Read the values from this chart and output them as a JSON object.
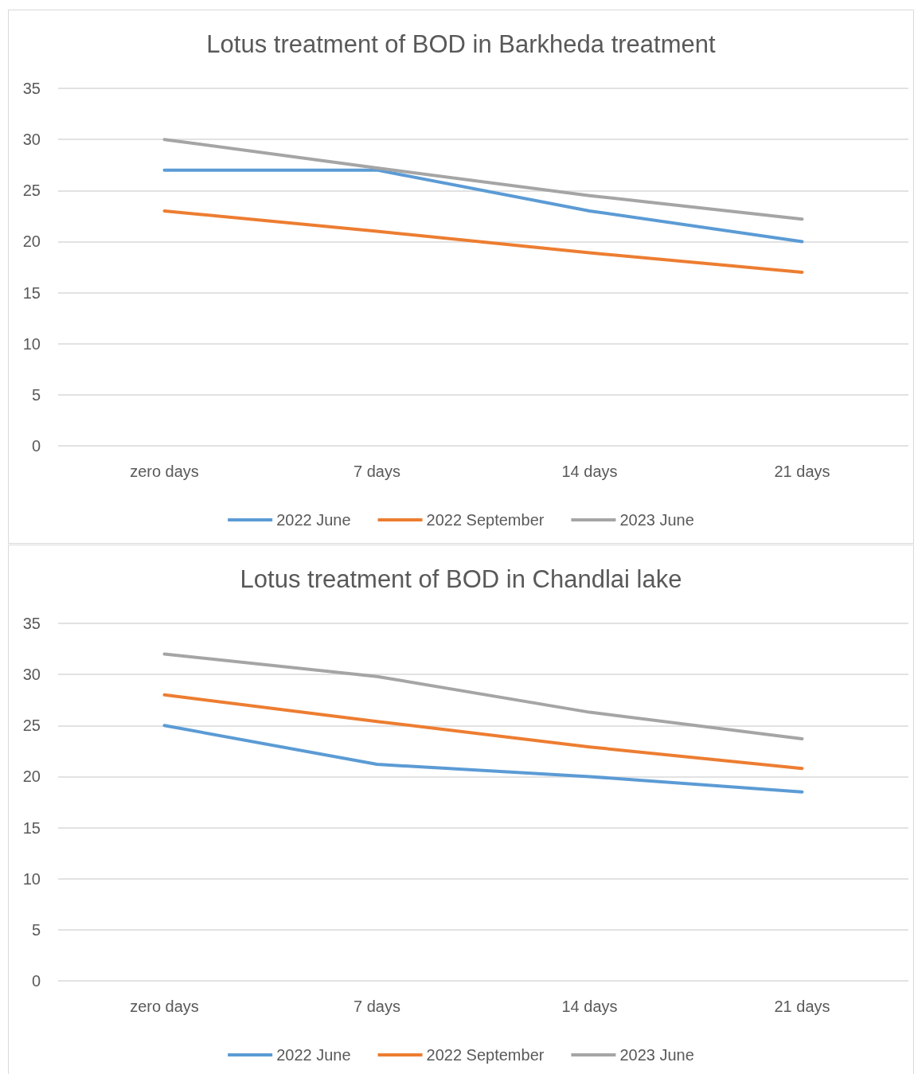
{
  "chart_data": [
    {
      "type": "line",
      "title": "Lotus treatment of BOD in Barkheda treatment",
      "categories": [
        "zero days",
        "7 days",
        "14 days",
        "21 days"
      ],
      "series": [
        {
          "name": "2022 June",
          "color": "#5b9bd5",
          "values": [
            27,
            27,
            23,
            20
          ]
        },
        {
          "name": "2022 September",
          "color": "#ed7d31",
          "values": [
            23,
            21,
            18.9,
            17
          ]
        },
        {
          "name": "2023 June",
          "color": "#a5a5a5",
          "values": [
            30,
            27.2,
            24.5,
            22.2
          ]
        }
      ],
      "ylim": [
        0,
        35
      ],
      "yticks": [
        0,
        5,
        10,
        15,
        20,
        25,
        30,
        35
      ],
      "grid": "y",
      "legend": "bottom",
      "marker": "none",
      "line_style": "solid"
    },
    {
      "type": "line",
      "title": "Lotus treatment of BOD in Chandlai lake",
      "categories": [
        "zero days",
        "7 days",
        "14 days",
        "21 days"
      ],
      "series": [
        {
          "name": "2022 June",
          "color": "#5b9bd5",
          "values": [
            25,
            21.2,
            20,
            18.5
          ]
        },
        {
          "name": "2022 September",
          "color": "#ed7d31",
          "values": [
            28,
            25.4,
            22.9,
            20.8
          ]
        },
        {
          "name": "2023 June",
          "color": "#a5a5a5",
          "values": [
            32,
            29.8,
            26.3,
            23.7
          ]
        }
      ],
      "ylim": [
        0,
        35
      ],
      "yticks": [
        0,
        5,
        10,
        15,
        20,
        25,
        30,
        35
      ],
      "grid": "y",
      "legend": "bottom",
      "marker": "none",
      "line_style": "solid"
    }
  ]
}
